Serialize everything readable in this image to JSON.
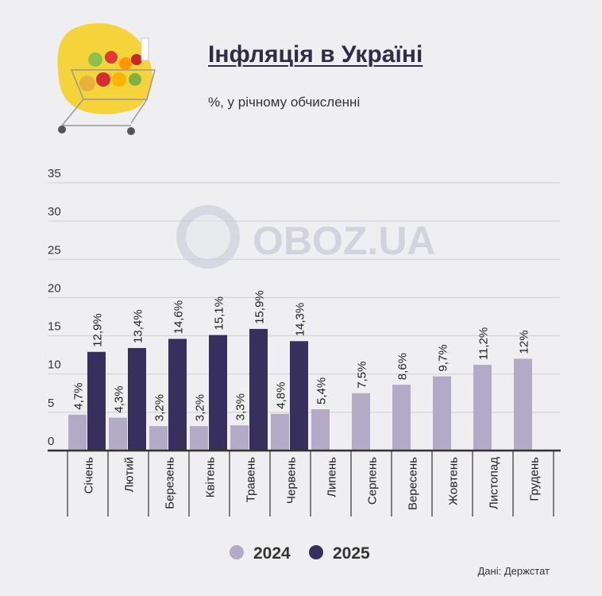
{
  "header": {
    "title": "Інфляція в Україні",
    "subtitle": "%, у річному обчисленні"
  },
  "watermark": "OBOZ.UA",
  "source": "Дані: Держстат",
  "colors": {
    "2024": "#b3aac6",
    "2025": "#38305c"
  },
  "chart_data": {
    "type": "bar",
    "title": "Інфляція в Україні",
    "subtitle": "%, у річному обчисленні",
    "categories": [
      "Січень",
      "Лютий",
      "Березень",
      "Квітень",
      "Травень",
      "Червень",
      "Липень",
      "Серпень",
      "Вересень",
      "Жовтень",
      "Листопад",
      "Грудень"
    ],
    "series": [
      {
        "name": "2024",
        "values": [
          4.7,
          4.3,
          3.2,
          3.2,
          3.3,
          4.8,
          5.4,
          7.5,
          8.6,
          9.7,
          11.2,
          12
        ],
        "labels": [
          "4,7%",
          "4,3%",
          "3,2%",
          "3,2%",
          "3,3%",
          "4,8%",
          "5,4%",
          "7,5%",
          "8,6%",
          "9,7%",
          "11,2%",
          "12%"
        ]
      },
      {
        "name": "2025",
        "values": [
          12.9,
          13.4,
          14.6,
          15.1,
          15.9,
          14.3,
          null,
          null,
          null,
          null,
          null,
          null
        ],
        "labels": [
          "12,9%",
          "13,4%",
          "14,6%",
          "15,1%",
          "15,9%",
          "14,3%",
          null,
          null,
          null,
          null,
          null,
          null
        ]
      }
    ],
    "yticks": [
      0,
      5,
      10,
      15,
      20,
      25,
      30,
      35
    ],
    "ylim": [
      0,
      35
    ],
    "grid": true,
    "legend": "bottom-center"
  }
}
